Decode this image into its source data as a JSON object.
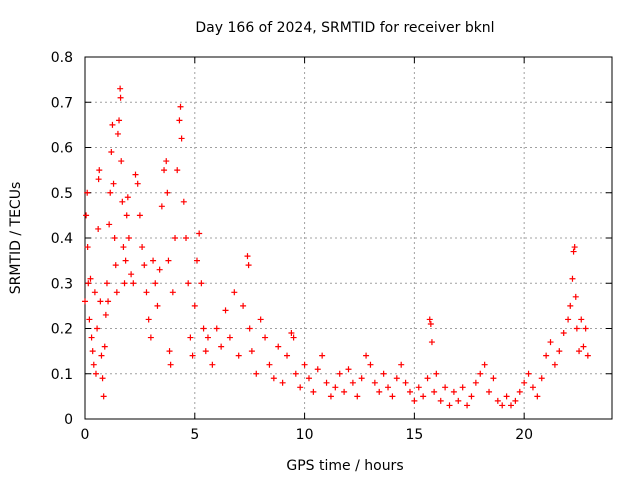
{
  "chart_data": {
    "type": "scatter",
    "title": "Day 166 of 2024, SRMTID for receiver bknl",
    "xlabel": "GPS time / hours",
    "ylabel": "SRMTID / TECUs",
    "xlim": [
      0,
      24
    ],
    "ylim": [
      0,
      0.8
    ],
    "x_ticks": [
      0,
      5,
      10,
      15,
      20
    ],
    "y_ticks": [
      0,
      0.1,
      0.2,
      0.3,
      0.4,
      0.5,
      0.6,
      0.7,
      0.8
    ],
    "x_tick_labels": [
      "0",
      "5",
      "10",
      "15",
      "20"
    ],
    "y_tick_labels": [
      "0",
      "0.1",
      "0.2",
      "0.3",
      "0.4",
      "0.5",
      "0.6",
      "0.7",
      "0.8"
    ],
    "grid": true,
    "marker": "+",
    "marker_color": "#ff0000",
    "series": [
      {
        "name": "SRMTID",
        "points": [
          [
            0.0,
            0.26
          ],
          [
            0.05,
            0.45
          ],
          [
            0.1,
            0.5
          ],
          [
            0.12,
            0.38
          ],
          [
            0.15,
            0.3
          ],
          [
            0.2,
            0.22
          ],
          [
            0.25,
            0.31
          ],
          [
            0.3,
            0.18
          ],
          [
            0.35,
            0.15
          ],
          [
            0.4,
            0.12
          ],
          [
            0.45,
            0.28
          ],
          [
            0.5,
            0.1
          ],
          [
            0.55,
            0.2
          ],
          [
            0.6,
            0.42
          ],
          [
            0.62,
            0.53
          ],
          [
            0.65,
            0.55
          ],
          [
            0.7,
            0.26
          ],
          [
            0.75,
            0.14
          ],
          [
            0.8,
            0.09
          ],
          [
            0.85,
            0.05
          ],
          [
            0.9,
            0.16
          ],
          [
            0.95,
            0.23
          ],
          [
            1.0,
            0.3
          ],
          [
            1.05,
            0.26
          ],
          [
            1.1,
            0.43
          ],
          [
            1.15,
            0.5
          ],
          [
            1.2,
            0.59
          ],
          [
            1.25,
            0.65
          ],
          [
            1.3,
            0.52
          ],
          [
            1.35,
            0.4
          ],
          [
            1.4,
            0.34
          ],
          [
            1.45,
            0.28
          ],
          [
            1.5,
            0.63
          ],
          [
            1.55,
            0.66
          ],
          [
            1.6,
            0.73
          ],
          [
            1.62,
            0.71
          ],
          [
            1.65,
            0.57
          ],
          [
            1.7,
            0.48
          ],
          [
            1.75,
            0.38
          ],
          [
            1.8,
            0.3
          ],
          [
            1.85,
            0.35
          ],
          [
            1.9,
            0.45
          ],
          [
            1.95,
            0.49
          ],
          [
            2.0,
            0.4
          ],
          [
            2.1,
            0.32
          ],
          [
            2.2,
            0.3
          ],
          [
            2.3,
            0.54
          ],
          [
            2.4,
            0.52
          ],
          [
            2.5,
            0.45
          ],
          [
            2.6,
            0.38
          ],
          [
            2.7,
            0.34
          ],
          [
            2.8,
            0.28
          ],
          [
            2.9,
            0.22
          ],
          [
            3.0,
            0.18
          ],
          [
            3.1,
            0.35
          ],
          [
            3.2,
            0.3
          ],
          [
            3.3,
            0.25
          ],
          [
            3.4,
            0.33
          ],
          [
            3.5,
            0.47
          ],
          [
            3.6,
            0.55
          ],
          [
            3.7,
            0.57
          ],
          [
            3.75,
            0.5
          ],
          [
            3.8,
            0.35
          ],
          [
            3.85,
            0.15
          ],
          [
            3.9,
            0.12
          ],
          [
            4.0,
            0.28
          ],
          [
            4.1,
            0.4
          ],
          [
            4.2,
            0.55
          ],
          [
            4.3,
            0.66
          ],
          [
            4.35,
            0.69
          ],
          [
            4.4,
            0.62
          ],
          [
            4.5,
            0.48
          ],
          [
            4.6,
            0.4
          ],
          [
            4.7,
            0.3
          ],
          [
            4.8,
            0.18
          ],
          [
            4.9,
            0.14
          ],
          [
            5.0,
            0.25
          ],
          [
            5.1,
            0.35
          ],
          [
            5.2,
            0.41
          ],
          [
            5.3,
            0.3
          ],
          [
            5.4,
            0.2
          ],
          [
            5.5,
            0.15
          ],
          [
            5.6,
            0.18
          ],
          [
            5.8,
            0.12
          ],
          [
            6.0,
            0.2
          ],
          [
            6.2,
            0.16
          ],
          [
            6.4,
            0.24
          ],
          [
            6.6,
            0.18
          ],
          [
            6.8,
            0.28
          ],
          [
            7.0,
            0.14
          ],
          [
            7.2,
            0.25
          ],
          [
            7.4,
            0.36
          ],
          [
            7.45,
            0.34
          ],
          [
            7.5,
            0.2
          ],
          [
            7.6,
            0.15
          ],
          [
            7.8,
            0.1
          ],
          [
            8.0,
            0.22
          ],
          [
            8.2,
            0.18
          ],
          [
            8.4,
            0.12
          ],
          [
            8.6,
            0.09
          ],
          [
            8.8,
            0.16
          ],
          [
            9.0,
            0.08
          ],
          [
            9.2,
            0.14
          ],
          [
            9.4,
            0.19
          ],
          [
            9.5,
            0.18
          ],
          [
            9.6,
            0.1
          ],
          [
            9.8,
            0.07
          ],
          [
            10.0,
            0.12
          ],
          [
            10.2,
            0.09
          ],
          [
            10.4,
            0.06
          ],
          [
            10.6,
            0.11
          ],
          [
            10.8,
            0.14
          ],
          [
            11.0,
            0.08
          ],
          [
            11.2,
            0.05
          ],
          [
            11.4,
            0.07
          ],
          [
            11.6,
            0.1
          ],
          [
            11.8,
            0.06
          ],
          [
            12.0,
            0.11
          ],
          [
            12.2,
            0.08
          ],
          [
            12.4,
            0.05
          ],
          [
            12.6,
            0.09
          ],
          [
            12.8,
            0.14
          ],
          [
            13.0,
            0.12
          ],
          [
            13.2,
            0.08
          ],
          [
            13.4,
            0.06
          ],
          [
            13.6,
            0.1
          ],
          [
            13.8,
            0.07
          ],
          [
            14.0,
            0.05
          ],
          [
            14.2,
            0.09
          ],
          [
            14.4,
            0.12
          ],
          [
            14.6,
            0.08
          ],
          [
            14.8,
            0.06
          ],
          [
            15.0,
            0.04
          ],
          [
            15.2,
            0.07
          ],
          [
            15.4,
            0.05
          ],
          [
            15.6,
            0.09
          ],
          [
            15.7,
            0.22
          ],
          [
            15.75,
            0.21
          ],
          [
            15.8,
            0.17
          ],
          [
            15.9,
            0.06
          ],
          [
            16.0,
            0.1
          ],
          [
            16.2,
            0.04
          ],
          [
            16.4,
            0.07
          ],
          [
            16.6,
            0.03
          ],
          [
            16.8,
            0.06
          ],
          [
            17.0,
            0.04
          ],
          [
            17.2,
            0.07
          ],
          [
            17.4,
            0.03
          ],
          [
            17.6,
            0.05
          ],
          [
            17.8,
            0.08
          ],
          [
            18.0,
            0.1
          ],
          [
            18.2,
            0.12
          ],
          [
            18.4,
            0.06
          ],
          [
            18.6,
            0.09
          ],
          [
            18.8,
            0.04
          ],
          [
            19.0,
            0.03
          ],
          [
            19.2,
            0.05
          ],
          [
            19.4,
            0.03
          ],
          [
            19.6,
            0.04
          ],
          [
            19.8,
            0.06
          ],
          [
            20.0,
            0.08
          ],
          [
            20.2,
            0.1
          ],
          [
            20.4,
            0.07
          ],
          [
            20.6,
            0.05
          ],
          [
            20.8,
            0.09
          ],
          [
            21.0,
            0.14
          ],
          [
            21.2,
            0.17
          ],
          [
            21.4,
            0.12
          ],
          [
            21.6,
            0.15
          ],
          [
            21.8,
            0.19
          ],
          [
            22.0,
            0.22
          ],
          [
            22.1,
            0.25
          ],
          [
            22.2,
            0.31
          ],
          [
            22.25,
            0.37
          ],
          [
            22.3,
            0.38
          ],
          [
            22.35,
            0.27
          ],
          [
            22.4,
            0.2
          ],
          [
            22.5,
            0.15
          ],
          [
            22.6,
            0.22
          ],
          [
            22.7,
            0.16
          ],
          [
            22.8,
            0.2
          ],
          [
            22.9,
            0.14
          ]
        ]
      }
    ]
  }
}
